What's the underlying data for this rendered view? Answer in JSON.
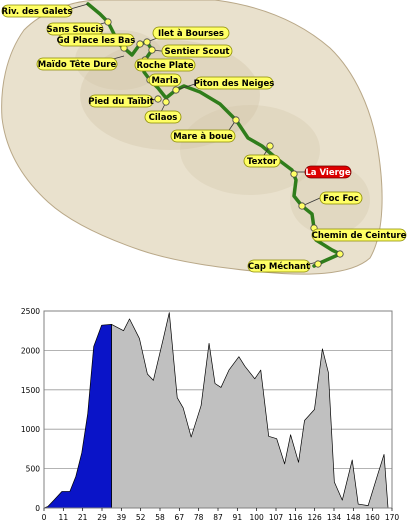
{
  "map": {
    "colors": {
      "sea": "#ffffff",
      "land": "#e9e1cd",
      "relief": "#d2c3a6",
      "trail": "#2f7d1b",
      "label_fill": "#ffff66",
      "label_stroke": "#8a8a00",
      "highlight_fill": "#dd0000"
    },
    "places": [
      {
        "id": "riv-des-galets",
        "label": "Riv. des Galets"
      },
      {
        "id": "sans-soucis",
        "label": "Sans Soucis"
      },
      {
        "id": "gd-place-les-bas",
        "label": "Gd Place les Bas"
      },
      {
        "id": "ilet-a-bourses",
        "label": "Ilet à Bourses"
      },
      {
        "id": "sentier-scout",
        "label": "Sentier Scout"
      },
      {
        "id": "maido-tete-dure",
        "label": "Maïdo Tête Dure"
      },
      {
        "id": "roche-plate",
        "label": "Roche Plate"
      },
      {
        "id": "marla",
        "label": "Marla"
      },
      {
        "id": "piton-des-neiges",
        "label": "Piton des Neiges"
      },
      {
        "id": "pied-du-taibit",
        "label": "Pied du Taïbit"
      },
      {
        "id": "cilaos",
        "label": "Cilaos"
      },
      {
        "id": "mare-a-boue",
        "label": "Mare à boue"
      },
      {
        "id": "textor",
        "label": "Textor"
      },
      {
        "id": "la-vierge",
        "label": "La Vierge",
        "highlight": true
      },
      {
        "id": "foc-foc",
        "label": "Foc Foc"
      },
      {
        "id": "chemin-de-ceinture",
        "label": "Chemin de Ceinture"
      },
      {
        "id": "cap-mechant",
        "label": "Cap Méchant"
      }
    ]
  },
  "chart_data": {
    "type": "area",
    "title": "",
    "xlabel": "",
    "ylabel": "",
    "ylim": [
      0,
      2500
    ],
    "yticks": [
      0,
      500,
      1000,
      1500,
      2000,
      2500
    ],
    "xlim": [
      0,
      175
    ],
    "xticks": [
      0,
      11,
      21,
      29,
      39,
      52,
      58,
      67,
      78,
      87,
      91,
      100,
      107,
      116,
      126,
      134,
      148,
      160,
      170
    ],
    "grid": true,
    "series": [
      {
        "color": "#0a14c8",
        "x": [
          0,
          2,
          5,
          9,
          13,
          16,
          19,
          22,
          25,
          29,
          34
        ],
        "y": [
          0,
          20,
          100,
          210,
          210,
          400,
          700,
          1200,
          2050,
          2320,
          2330
        ]
      },
      {
        "color": "#c0c0c0",
        "x": [
          34,
          40,
          43,
          48,
          52,
          55,
          60,
          63,
          67,
          70,
          74,
          79,
          83,
          86,
          89,
          93,
          98,
          101,
          106,
          109,
          113,
          117,
          121,
          124,
          128,
          131,
          136,
          140,
          143,
          146,
          150,
          155,
          158,
          163,
          168,
          171,
          173
        ],
        "y": [
          2330,
          2250,
          2400,
          2150,
          1700,
          1620,
          2150,
          2480,
          1400,
          1270,
          900,
          1300,
          2090,
          1580,
          1530,
          1750,
          1920,
          1800,
          1640,
          1750,
          910,
          880,
          560,
          930,
          580,
          1110,
          1250,
          2020,
          1720,
          330,
          100,
          610,
          50,
          30,
          440,
          680,
          0
        ]
      }
    ]
  }
}
